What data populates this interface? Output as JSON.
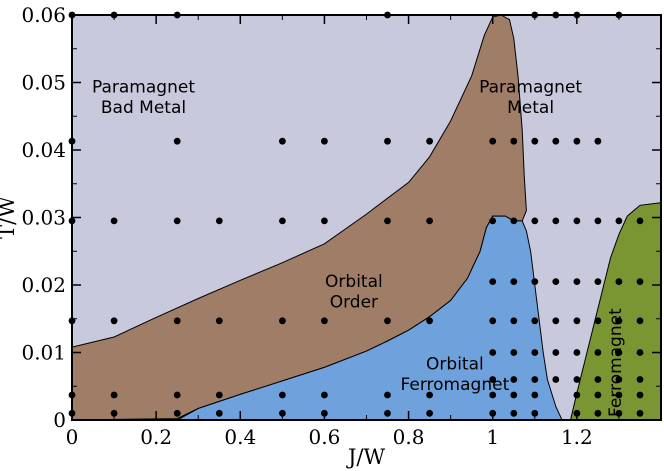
{
  "chart_data": {
    "type": "scatter",
    "title": "",
    "xlabel": "J/W",
    "ylabel": "T/W",
    "xlim": [
      0,
      1.4
    ],
    "ylim": [
      0,
      0.06
    ],
    "x_ticks": [
      "0",
      "0.2",
      "0.4",
      "0.6",
      "0.8",
      "1",
      "1.2"
    ],
    "y_ticks": [
      "0",
      "0.01",
      "0.02",
      "0.03",
      "0.04",
      "0.05",
      "0.06"
    ],
    "grid": false,
    "colors": {
      "paramagnet": "#c8c9dc",
      "orbital_order": "#a07d66",
      "orbital_ferromagnet": "#6fa2dd",
      "ferromagnet": "#7a9633",
      "points": "#000000"
    },
    "regions": [
      {
        "name": "Paramagnet Bad Metal",
        "lines": [
          "Paramagnet",
          "Bad Metal"
        ],
        "label_at": [
          0.17,
          0.0485
        ],
        "color": "#c8c9dc",
        "boundary": []
      },
      {
        "name": "Paramagnet Metal",
        "lines": [
          "Paramagnet",
          "Metal"
        ],
        "label_at": [
          1.09,
          0.0485
        ],
        "color": "#c8c9dc",
        "boundary": []
      },
      {
        "name": "Orbital Order",
        "lines": [
          "Orbital",
          "Order"
        ],
        "label_at": [
          0.67,
          0.0197
        ],
        "color": "#a07d66",
        "boundary": [
          [
            0,
            0.0108
          ],
          [
            0.1,
            0.0123
          ],
          [
            0.2,
            0.0152
          ],
          [
            0.3,
            0.018
          ],
          [
            0.4,
            0.0207
          ],
          [
            0.5,
            0.0233
          ],
          [
            0.6,
            0.0261
          ],
          [
            0.7,
            0.0305
          ],
          [
            0.8,
            0.0352
          ],
          [
            0.85,
            0.039
          ],
          [
            0.9,
            0.0443
          ],
          [
            0.95,
            0.051
          ],
          [
            0.98,
            0.057
          ],
          [
            1.0,
            0.0597
          ],
          [
            1.02,
            0.06
          ],
          [
            1.04,
            0.0593
          ],
          [
            1.05,
            0.0565
          ],
          [
            1.06,
            0.051
          ],
          [
            1.07,
            0.043
          ],
          [
            1.075,
            0.036
          ],
          [
            1.08,
            0.031
          ],
          [
            1.07,
            0.0295
          ],
          [
            1.05,
            0.0295
          ],
          [
            1.03,
            0.0302
          ],
          [
            1.0,
            0.0302
          ],
          [
            0.985,
            0.0285
          ],
          [
            0.97,
            0.025
          ],
          [
            0.94,
            0.021
          ],
          [
            0.9,
            0.0177
          ],
          [
            0.85,
            0.0153
          ],
          [
            0.8,
            0.0133
          ],
          [
            0.75,
            0.0117
          ],
          [
            0.7,
            0.0102
          ],
          [
            0.6,
            0.0078
          ],
          [
            0.5,
            0.0058
          ],
          [
            0.4,
            0.0038
          ],
          [
            0.3,
            0.0017
          ],
          [
            0.25,
            0.0002
          ],
          [
            0,
            0
          ]
        ]
      },
      {
        "name": "Orbital Ferromagnet",
        "lines": [
          "Orbital",
          "Ferromagnet"
        ],
        "label_at": [
          0.91,
          0.0075
        ],
        "color": "#6fa2dd",
        "boundary": [
          [
            0.25,
            0
          ],
          [
            0.3,
            0.0017
          ],
          [
            0.4,
            0.0038
          ],
          [
            0.5,
            0.0058
          ],
          [
            0.6,
            0.0078
          ],
          [
            0.7,
            0.0102
          ],
          [
            0.75,
            0.0117
          ],
          [
            0.8,
            0.0133
          ],
          [
            0.85,
            0.0153
          ],
          [
            0.9,
            0.0177
          ],
          [
            0.94,
            0.021
          ],
          [
            0.97,
            0.025
          ],
          [
            0.985,
            0.0285
          ],
          [
            1.0,
            0.0302
          ],
          [
            1.03,
            0.0302
          ],
          [
            1.05,
            0.0295
          ],
          [
            1.07,
            0.0295
          ],
          [
            1.08,
            0.028
          ],
          [
            1.09,
            0.025
          ],
          [
            1.1,
            0.02
          ],
          [
            1.11,
            0.015
          ],
          [
            1.12,
            0.01
          ],
          [
            1.13,
            0.006
          ],
          [
            1.15,
            0.002
          ],
          [
            1.165,
            0
          ]
        ]
      },
      {
        "name": "Ferromagnet",
        "lines": [
          "Ferromagnet"
        ],
        "label_at": [
          1.305,
          0.0085
        ],
        "rotate": -90,
        "color": "#7a9633",
        "boundary": [
          [
            1.185,
            0
          ],
          [
            1.2,
            0.004
          ],
          [
            1.22,
            0.009
          ],
          [
            1.24,
            0.014
          ],
          [
            1.26,
            0.019
          ],
          [
            1.28,
            0.024
          ],
          [
            1.3,
            0.0275
          ],
          [
            1.32,
            0.0302
          ],
          [
            1.35,
            0.0318
          ],
          [
            1.4,
            0.0322
          ],
          [
            1.4,
            0
          ]
        ]
      }
    ],
    "points": [
      {
        "x": 0,
        "y": 0.06
      },
      {
        "x": 0,
        "y": 0.0413
      },
      {
        "x": 0,
        "y": 0.0295
      },
      {
        "x": 0,
        "y": 0.0147
      },
      {
        "x": 0,
        "y": 0.0037
      },
      {
        "x": 0,
        "y": 0.001
      },
      {
        "x": 0.1,
        "y": 0.06
      },
      {
        "x": 0.1,
        "y": 0.0295
      },
      {
        "x": 0.1,
        "y": 0.0147
      },
      {
        "x": 0.1,
        "y": 0.0037
      },
      {
        "x": 0.1,
        "y": 0.001
      },
      {
        "x": 0.25,
        "y": 0.06
      },
      {
        "x": 0.25,
        "y": 0.0413
      },
      {
        "x": 0.25,
        "y": 0.0295
      },
      {
        "x": 0.25,
        "y": 0.0147
      },
      {
        "x": 0.25,
        "y": 0.0037
      },
      {
        "x": 0.25,
        "y": 0.001
      },
      {
        "x": 0.35,
        "y": 0.0295
      },
      {
        "x": 0.35,
        "y": 0.0147
      },
      {
        "x": 0.35,
        "y": 0.0037
      },
      {
        "x": 0.35,
        "y": 0.001
      },
      {
        "x": 0.5,
        "y": 0.0413
      },
      {
        "x": 0.5,
        "y": 0.0295
      },
      {
        "x": 0.5,
        "y": 0.0147
      },
      {
        "x": 0.5,
        "y": 0.0037
      },
      {
        "x": 0.5,
        "y": 0.001
      },
      {
        "x": 0.6,
        "y": 0.0413
      },
      {
        "x": 0.6,
        "y": 0.0295
      },
      {
        "x": 0.6,
        "y": 0.0147
      },
      {
        "x": 0.6,
        "y": 0.0037
      },
      {
        "x": 0.6,
        "y": 0.001
      },
      {
        "x": 0.75,
        "y": 0.06
      },
      {
        "x": 0.75,
        "y": 0.0413
      },
      {
        "x": 0.75,
        "y": 0.0295
      },
      {
        "x": 0.75,
        "y": 0.0147
      },
      {
        "x": 0.75,
        "y": 0.0037
      },
      {
        "x": 0.75,
        "y": 0.001
      },
      {
        "x": 0.85,
        "y": 0.0413
      },
      {
        "x": 0.85,
        "y": 0.0295
      },
      {
        "x": 0.85,
        "y": 0.0147
      },
      {
        "x": 0.85,
        "y": 0.0037
      },
      {
        "x": 0.85,
        "y": 0.001
      },
      {
        "x": 1.0,
        "y": 0.0413
      },
      {
        "x": 1.0,
        "y": 0.0295
      },
      {
        "x": 1.0,
        "y": 0.0147
      },
      {
        "x": 1.0,
        "y": 0.0037
      },
      {
        "x": 1.0,
        "y": 0.001
      },
      {
        "x": 1.0,
        "y": 0.0205
      },
      {
        "x": 1.0,
        "y": 0.01
      },
      {
        "x": 1.0,
        "y": 0.006
      },
      {
        "x": 1.05,
        "y": 0.0413
      },
      {
        "x": 1.05,
        "y": 0.0295
      },
      {
        "x": 1.05,
        "y": 0.0205
      },
      {
        "x": 1.05,
        "y": 0.0147
      },
      {
        "x": 1.05,
        "y": 0.01
      },
      {
        "x": 1.05,
        "y": 0.006
      },
      {
        "x": 1.05,
        "y": 0.0037
      },
      {
        "x": 1.05,
        "y": 0.001
      },
      {
        "x": 1.1,
        "y": 0.06
      },
      {
        "x": 1.1,
        "y": 0.0413
      },
      {
        "x": 1.1,
        "y": 0.0295
      },
      {
        "x": 1.1,
        "y": 0.0205
      },
      {
        "x": 1.1,
        "y": 0.0147
      },
      {
        "x": 1.1,
        "y": 0.01
      },
      {
        "x": 1.1,
        "y": 0.006
      },
      {
        "x": 1.1,
        "y": 0.0037
      },
      {
        "x": 1.1,
        "y": 0.001
      },
      {
        "x": 1.15,
        "y": 0.06
      },
      {
        "x": 1.15,
        "y": 0.0413
      },
      {
        "x": 1.15,
        "y": 0.0295
      },
      {
        "x": 1.15,
        "y": 0.0205
      },
      {
        "x": 1.15,
        "y": 0.0147
      },
      {
        "x": 1.15,
        "y": 0.01
      },
      {
        "x": 1.15,
        "y": 0.006
      },
      {
        "x": 1.2,
        "y": 0.06
      },
      {
        "x": 1.2,
        "y": 0.0413
      },
      {
        "x": 1.2,
        "y": 0.0295
      },
      {
        "x": 1.2,
        "y": 0.0205
      },
      {
        "x": 1.2,
        "y": 0.0147
      },
      {
        "x": 1.2,
        "y": 0.01
      },
      {
        "x": 1.2,
        "y": 0.006
      },
      {
        "x": 1.2,
        "y": 0.0037
      },
      {
        "x": 1.2,
        "y": 0.001
      },
      {
        "x": 1.25,
        "y": 0.0413
      },
      {
        "x": 1.25,
        "y": 0.0295
      },
      {
        "x": 1.25,
        "y": 0.0205
      },
      {
        "x": 1.25,
        "y": 0.0147
      },
      {
        "x": 1.25,
        "y": 0.01
      },
      {
        "x": 1.25,
        "y": 0.006
      },
      {
        "x": 1.25,
        "y": 0.0037
      },
      {
        "x": 1.25,
        "y": 0.001
      },
      {
        "x": 1.3,
        "y": 0.06
      },
      {
        "x": 1.3,
        "y": 0.0295
      },
      {
        "x": 1.3,
        "y": 0.0205
      },
      {
        "x": 1.3,
        "y": 0.0147
      },
      {
        "x": 1.3,
        "y": 0.01
      },
      {
        "x": 1.3,
        "y": 0.006
      },
      {
        "x": 1.3,
        "y": 0.0037
      },
      {
        "x": 1.3,
        "y": 0.001
      },
      {
        "x": 1.35,
        "y": 0.0295
      },
      {
        "x": 1.35,
        "y": 0.0205
      },
      {
        "x": 1.35,
        "y": 0.0147
      },
      {
        "x": 1.35,
        "y": 0.01
      },
      {
        "x": 1.35,
        "y": 0.006
      },
      {
        "x": 1.35,
        "y": 0.0037
      },
      {
        "x": 1.35,
        "y": 0.001
      }
    ]
  }
}
